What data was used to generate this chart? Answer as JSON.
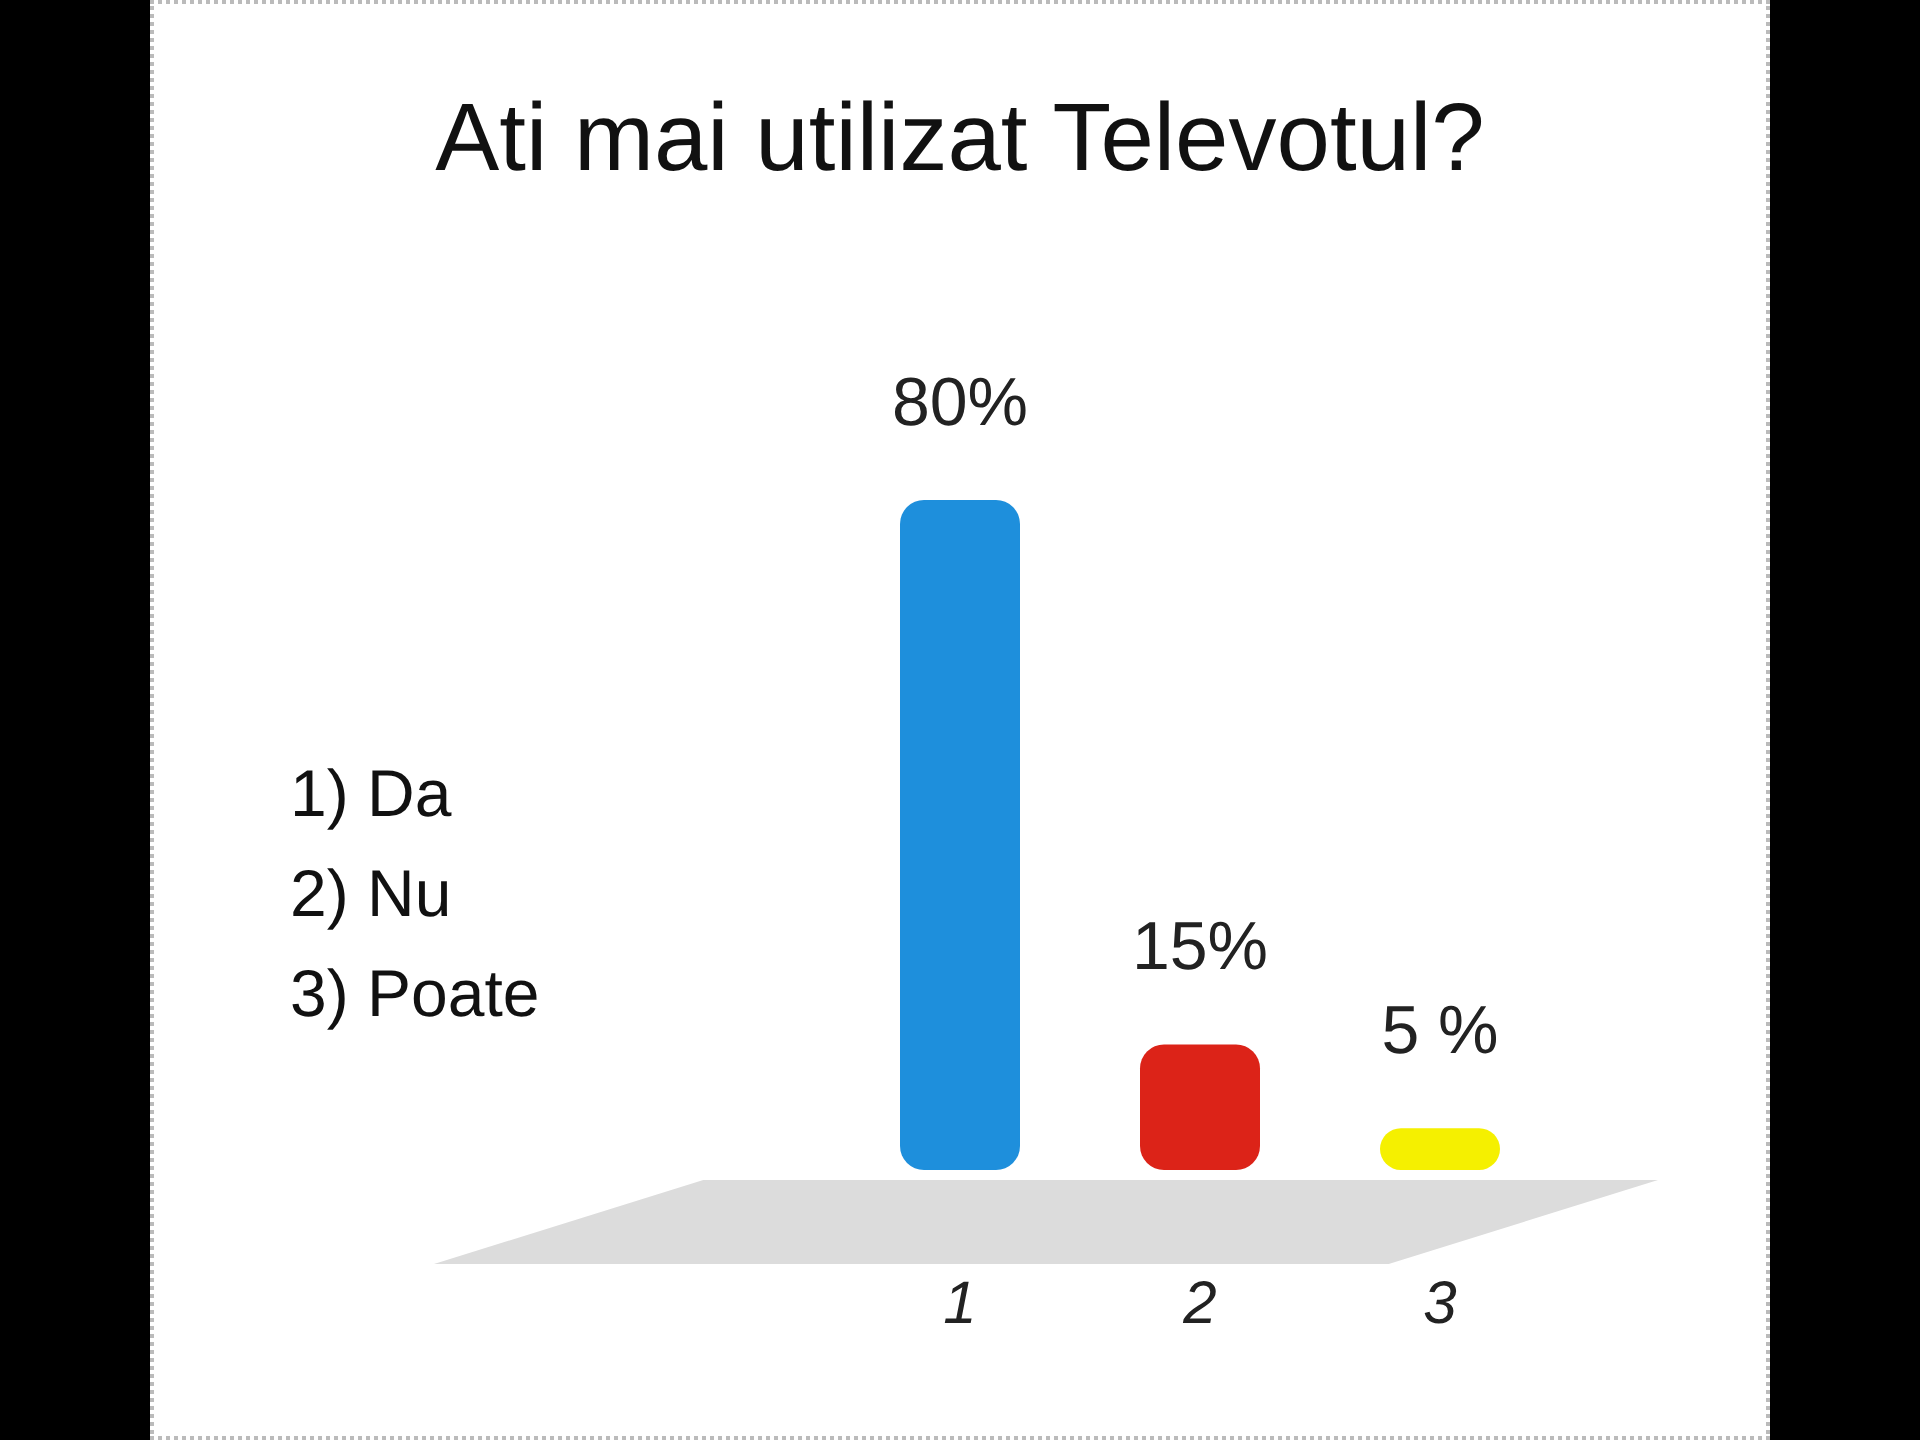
{
  "chart_data": {
    "type": "bar",
    "title": "Ati mai utilizat Televotul?",
    "categories": [
      "1",
      "2",
      "3"
    ],
    "values": [
      80,
      15,
      5
    ],
    "colors": [
      "#1e8fdc",
      "#dc2318",
      "#f5f000"
    ],
    "value_labels": [
      "80%",
      "15%",
      "5 %"
    ],
    "annotations": [
      "1) Da",
      "2) Nu",
      "3) Poate"
    ]
  }
}
